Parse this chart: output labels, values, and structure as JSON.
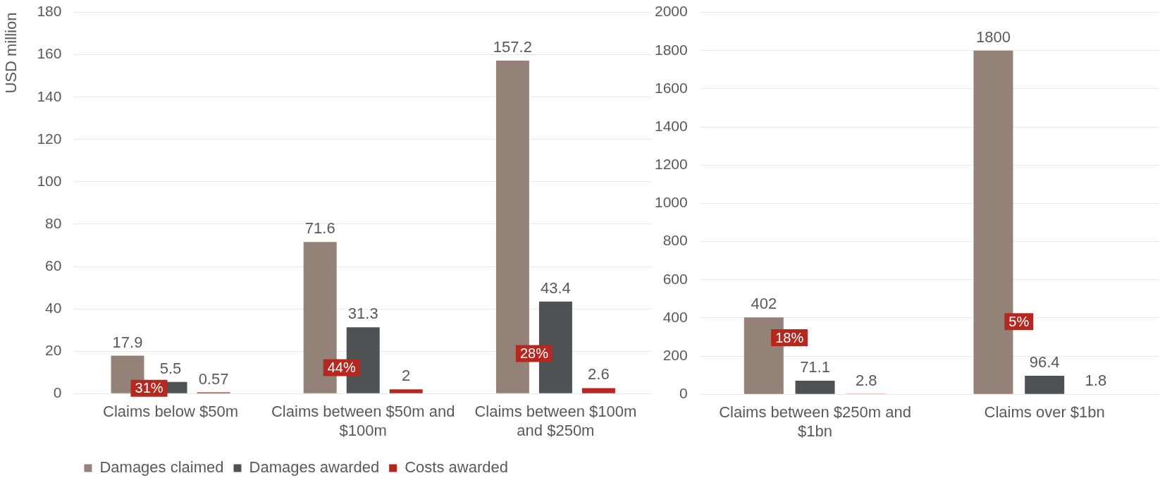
{
  "chart_data": [
    {
      "type": "bar",
      "ylabel": "USD million",
      "categories": [
        "Claims below $50m",
        "Claims between $50m and $100m",
        "Claims between $100m and $250m"
      ],
      "series": [
        {
          "name": "Damages claimed",
          "color": "#948279",
          "values": [
            17.9,
            71.6,
            157.2
          ]
        },
        {
          "name": "Damages awarded",
          "color": "#4f5254",
          "values": [
            5.5,
            31.3,
            43.4
          ]
        },
        {
          "name": "Costs awarded",
          "color": "#b5281f",
          "values": [
            0.57,
            2,
            2.6
          ]
        }
      ],
      "ylim": [
        0,
        180
      ],
      "yticks": [
        0,
        20,
        40,
        60,
        80,
        100,
        120,
        140,
        160,
        180
      ],
      "grid": "y",
      "legend": "bottom left",
      "data_labels": true,
      "annotations": [
        "31%",
        "44%",
        "28%"
      ]
    },
    {
      "type": "bar",
      "categories": [
        "Claims between $250m and $1bn",
        "Claims over $1bn"
      ],
      "series": [
        {
          "color": "#948279",
          "values": [
            402,
            1800
          ]
        },
        {
          "color": "#4f5254",
          "values": [
            71.1,
            96.4
          ]
        },
        {
          "color": "#b5281f",
          "values": [
            2.8,
            1.8
          ]
        }
      ],
      "ylim": [
        0,
        2000
      ],
      "yticks": [
        0,
        200,
        400,
        600,
        800,
        1000,
        1200,
        1400,
        1600,
        1800,
        2000
      ],
      "grid": "y",
      "data_labels": true,
      "annotations": [
        "18%",
        "5%"
      ]
    }
  ]
}
